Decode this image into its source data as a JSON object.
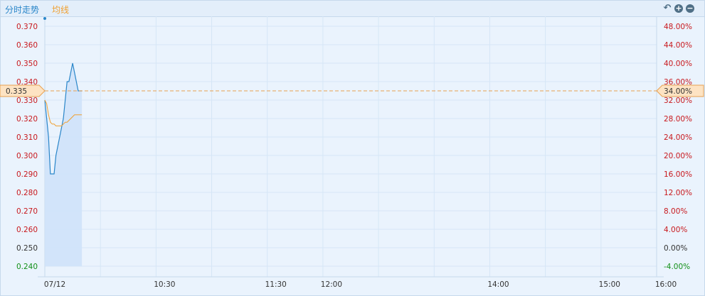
{
  "tabs": {
    "intraday": "分时走势",
    "average": "均线"
  },
  "controls": [
    "undo-icon",
    "zoom-in-icon",
    "zoom-out-icon"
  ],
  "colors": {
    "price": "#2a86c9",
    "average": "#f0a030",
    "up": "#c8191e",
    "down": "#129018",
    "fill": "#cfe2fa"
  },
  "chart_data": {
    "type": "line",
    "date": "07/12",
    "prev_close": 0.25,
    "current_price_label": "0.335",
    "current_pct_label": "34.00%",
    "ylim": [
      0.24,
      0.37
    ],
    "y_ticks": [
      "0.370",
      "0.360",
      "0.350",
      "0.340",
      "0.330",
      "0.320",
      "0.310",
      "0.300",
      "0.290",
      "0.280",
      "0.270",
      "0.260",
      "0.250",
      "0.240"
    ],
    "pct_ticks": [
      "48.00%",
      "44.00%",
      "40.00%",
      "36.00%",
      "32.00%",
      "28.00%",
      "24.00%",
      "20.00%",
      "16.00%",
      "12.00%",
      "8.00%",
      "4.00%",
      "0.00%",
      "-4.00%"
    ],
    "x_ticks": [
      "07/12",
      "10:30",
      "11:30",
      "12:00",
      "14:00",
      "15:00",
      "16:00"
    ],
    "series": [
      {
        "name": "分时走势",
        "values": [
          0.33,
          0.32,
          0.31,
          0.29,
          0.29,
          0.29,
          0.3,
          0.305,
          0.31,
          0.315,
          0.32,
          0.33,
          0.34,
          0.34,
          0.345,
          0.35,
          0.345,
          0.34,
          0.335,
          0.335,
          0.335
        ]
      },
      {
        "name": "均线",
        "values": [
          0.33,
          0.328,
          0.322,
          0.318,
          0.317,
          0.317,
          0.316,
          0.316,
          0.316,
          0.316,
          0.317,
          0.318,
          0.318,
          0.319,
          0.32,
          0.321,
          0.322,
          0.322,
          0.322,
          0.322,
          0.322
        ]
      }
    ]
  }
}
